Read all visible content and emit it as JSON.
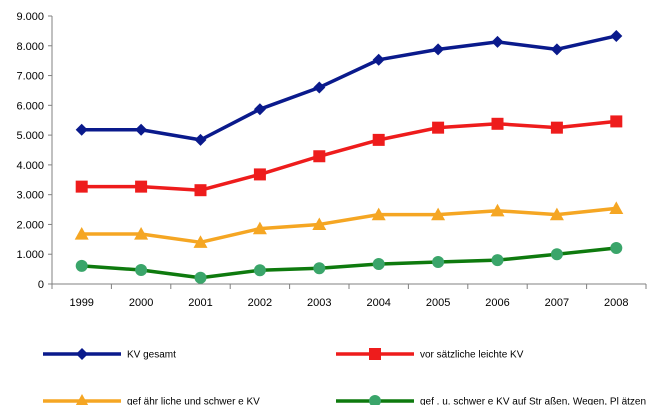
{
  "chart_data": {
    "type": "line",
    "title": "",
    "xlabel": "",
    "ylabel": "",
    "categories": [
      "1999",
      "2000",
      "2001",
      "2002",
      "2003",
      "2004",
      "2005",
      "2006",
      "2007",
      "2008"
    ],
    "ylim": [
      0,
      9000
    ],
    "y_ticks": [
      0,
      1000,
      2000,
      3000,
      4000,
      5000,
      6000,
      7000,
      8000,
      9000
    ],
    "y_tick_labels": [
      "0",
      "1.000",
      "2.000",
      "3.000",
      "4.000",
      "5.000",
      "6.000",
      "7.000",
      "8.000",
      "9.000"
    ],
    "grid": false,
    "legend_position": "bottom",
    "series": [
      {
        "name": "KV gesamt",
        "color": "#0a1a8c",
        "marker": "diamond",
        "values": [
          5180,
          5180,
          4840,
          5870,
          6600,
          7530,
          7880,
          8130,
          7880,
          8330
        ]
      },
      {
        "name": "vor sätzliche leichte KV",
        "color": "#ee1c1c",
        "marker": "square",
        "values": [
          3270,
          3270,
          3150,
          3680,
          4290,
          4840,
          5250,
          5380,
          5250,
          5460
        ]
      },
      {
        "name": "gef ähr liche und schwer e KV",
        "color": "#f5a623",
        "marker": "triangle",
        "values": [
          1680,
          1680,
          1400,
          1860,
          2000,
          2330,
          2330,
          2460,
          2330,
          2540
        ]
      },
      {
        "name": "gef . u. schwer e KV auf Str aßen, Wegen, Pl ätzen",
        "color": "#1e8a2e",
        "marker": "circle",
        "line_color": "#0e7a0e",
        "marker_color": "#3aa56a",
        "values": [
          610,
          470,
          210,
          460,
          530,
          670,
          740,
          800,
          1000,
          1210
        ]
      }
    ]
  }
}
